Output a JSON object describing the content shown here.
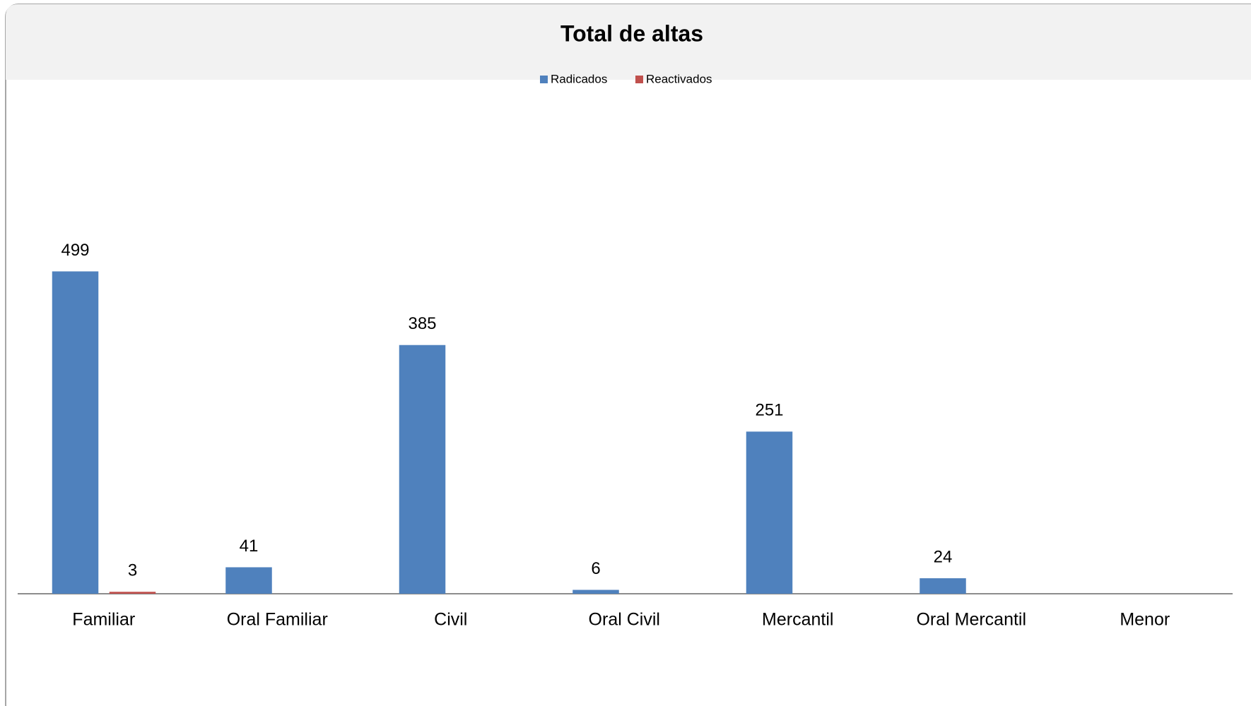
{
  "chart_data": {
    "type": "bar",
    "title": "Total de altas",
    "categories": [
      "Familiar",
      "Oral Familiar",
      "Civil",
      "Oral Civil",
      "Mercantil",
      "Oral Mercantil",
      "Menor"
    ],
    "series": [
      {
        "name": "Radicados",
        "color": "#4f81bd",
        "values": [
          499,
          41,
          385,
          6,
          251,
          24,
          null
        ]
      },
      {
        "name": "Reactivados",
        "color": "#c0504d",
        "values": [
          3,
          null,
          null,
          null,
          null,
          null,
          null
        ]
      }
    ],
    "ylim": [
      0,
      600
    ],
    "legend": "top"
  }
}
